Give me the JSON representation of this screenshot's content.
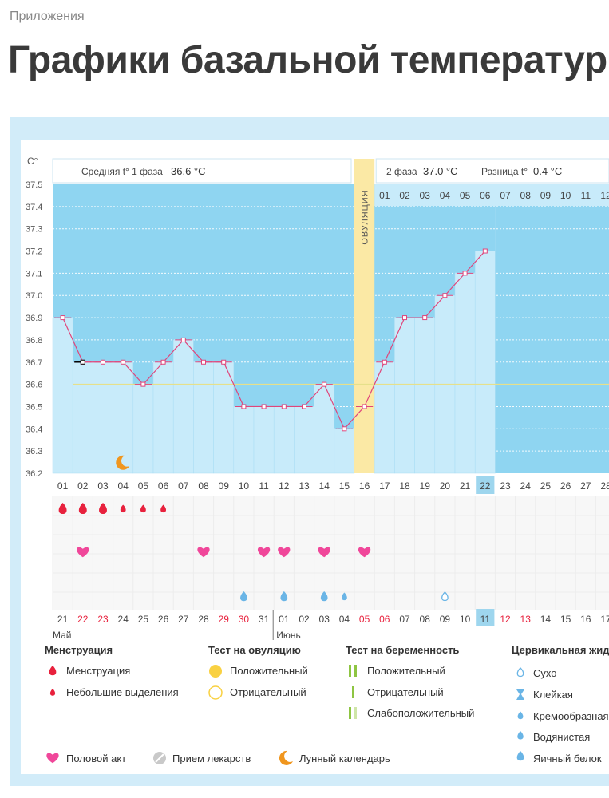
{
  "breadcrumb": "Приложения",
  "page_title": "Графики базальной температуры",
  "chart_data": {
    "type": "line",
    "title": "Графики базальной температуры",
    "y_unit_label": "C°",
    "ylim": [
      36.2,
      37.5
    ],
    "y_ticks": [
      "37.5",
      "37.4",
      "37.3",
      "37.2",
      "37.1",
      "37.0",
      "36.9",
      "36.8",
      "36.7",
      "36.6",
      "36.5",
      "36.4",
      "36.3",
      "36.2"
    ],
    "cycle_days": [
      "01",
      "02",
      "03",
      "04",
      "05",
      "06",
      "07",
      "08",
      "09",
      "10",
      "11",
      "12",
      "13",
      "14",
      "15",
      "16",
      "17",
      "18",
      "19",
      "20",
      "21",
      "22",
      "23",
      "24",
      "25",
      "26",
      "27",
      "28"
    ],
    "today_day_index": 21,
    "temperatures": [
      36.9,
      36.7,
      36.7,
      36.7,
      36.6,
      36.7,
      36.8,
      36.7,
      36.7,
      36.5,
      36.5,
      36.5,
      36.5,
      36.6,
      36.4,
      36.5,
      36.7,
      36.9,
      36.9,
      37.0,
      37.1,
      37.2
    ],
    "average_line_value": 36.6,
    "phase1_label": "Средняя t° 1 фаза",
    "phase1_value": "36.6 °C",
    "phase2_label": "2 фаза",
    "phase2_value": "37.0 °C",
    "difference_label": "Разница t°",
    "difference_value": "0.4 °C",
    "ovulation_label": "ОВУЛЯЦИЯ",
    "ovulation_day_index": 15,
    "luteal_days": [
      "01",
      "02",
      "03",
      "04",
      "05",
      "06",
      "07",
      "08",
      "09",
      "10",
      "11",
      "12"
    ],
    "menstruation_days": [
      0,
      1,
      2
    ],
    "light_discharge_days": [
      3,
      4,
      5
    ],
    "intercourse_days": [
      1,
      7,
      10,
      11,
      13,
      15
    ],
    "moon_day_index": 3,
    "cervical_mucus": [
      {
        "day_index": 9,
        "type": "egg-white"
      },
      {
        "day_index": 11,
        "type": "egg-white"
      },
      {
        "day_index": 13,
        "type": "egg-white"
      },
      {
        "day_index": 14,
        "type": "creamy"
      },
      {
        "day_index": 19,
        "type": "dry"
      }
    ],
    "calendar_dates": [
      {
        "d": "21",
        "red": false
      },
      {
        "d": "22",
        "red": true
      },
      {
        "d": "23",
        "red": true
      },
      {
        "d": "24",
        "red": false
      },
      {
        "d": "25",
        "red": false
      },
      {
        "d": "26",
        "red": false
      },
      {
        "d": "27",
        "red": false
      },
      {
        "d": "28",
        "red": false
      },
      {
        "d": "29",
        "red": true
      },
      {
        "d": "30",
        "red": true
      },
      {
        "d": "31",
        "red": false
      },
      {
        "d": "01",
        "red": false
      },
      {
        "d": "02",
        "red": false
      },
      {
        "d": "03",
        "red": false
      },
      {
        "d": "04",
        "red": false
      },
      {
        "d": "05",
        "red": true
      },
      {
        "d": "06",
        "red": true
      },
      {
        "d": "07",
        "red": false
      },
      {
        "d": "08",
        "red": false
      },
      {
        "d": "09",
        "red": false
      },
      {
        "d": "10",
        "red": false
      },
      {
        "d": "11",
        "red": false
      },
      {
        "d": "12",
        "red": true
      },
      {
        "d": "13",
        "red": true
      },
      {
        "d": "14",
        "red": false
      },
      {
        "d": "15",
        "red": false
      },
      {
        "d": "16",
        "red": false
      },
      {
        "d": "17",
        "red": false
      }
    ],
    "month_labels": [
      {
        "label": "Май",
        "day_index": 0
      },
      {
        "label": "Июнь",
        "day_index": 11
      }
    ]
  },
  "legend": {
    "menstruation_title": "Менструация",
    "menstruation": "Менструация",
    "light_discharge": "Небольшие выделения",
    "ovulation_test_title": "Тест на овуляцию",
    "ovulation_positive": "Положительный",
    "ovulation_negative": "Отрицательный",
    "pregnancy_test_title": "Тест на беременность",
    "pregnancy_positive": "Положительный",
    "pregnancy_negative": "Отрицательный",
    "pregnancy_weak": "Слабоположительный",
    "cervical_title": "Цервикальная жидкость",
    "cervical_dry": "Сухо",
    "cervical_sticky": "Клейкая",
    "cervical_creamy": "Кремообразная",
    "cervical_watery": "Водянистая",
    "cervical_eggwhite": "Яичный белок",
    "intercourse": "Половой акт",
    "medication": "Прием лекарств",
    "lunar": "Лунный календарь"
  },
  "colors": {
    "plot_bg": "#8fd5f1",
    "bar_fill": "#c8ebfa",
    "line": "#e0457b",
    "ovulation_band": "#fbe9a5",
    "red": "#e8213d",
    "heart": "#f0479a",
    "drop_blue": "#6ab5e6",
    "moon": "#f0961e",
    "sun": "#f9d142",
    "avg_line": "#e6e08a",
    "green": "#8ec542",
    "today": "#9ed6ee"
  }
}
